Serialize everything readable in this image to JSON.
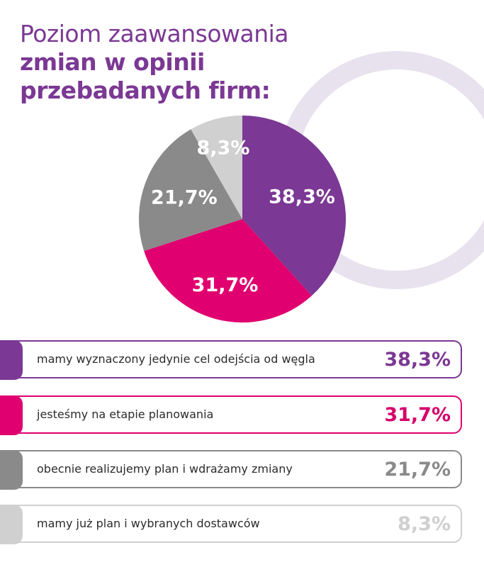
{
  "title": {
    "line1": "Poziom zaawansowania",
    "line2": "zmian w opinii",
    "line3": "przebadanych firm:"
  },
  "chart_data": {
    "type": "pie",
    "title": "Poziom zaawansowania zmian w opinii przebadanych firm:",
    "slices": [
      {
        "label": "mamy wyznaczony jedynie cel odejścia od węgla",
        "value": 38.3,
        "display": "38,3%",
        "color": "#7b3894",
        "text_color": "#7b3894"
      },
      {
        "label": "jesteśmy na etapie planowania",
        "value": 31.7,
        "display": "31,7%",
        "color": "#e0006f",
        "text_color": "#d6006b"
      },
      {
        "label": "obecnie realizujemy plan i wdrażamy zmiany",
        "value": 21.7,
        "display": "21,7%",
        "color": "#8a8a8a",
        "text_color": "#8a8a8a"
      },
      {
        "label": "mamy już plan i wybranych dostawców",
        "value": 8.3,
        "display": "8,3%",
        "color": "#d0d0d0",
        "text_color": "#cfcfcf"
      }
    ],
    "start": "12 o'clock, clockwise"
  },
  "decoration": {
    "ring_color": "#e8e2ee"
  }
}
